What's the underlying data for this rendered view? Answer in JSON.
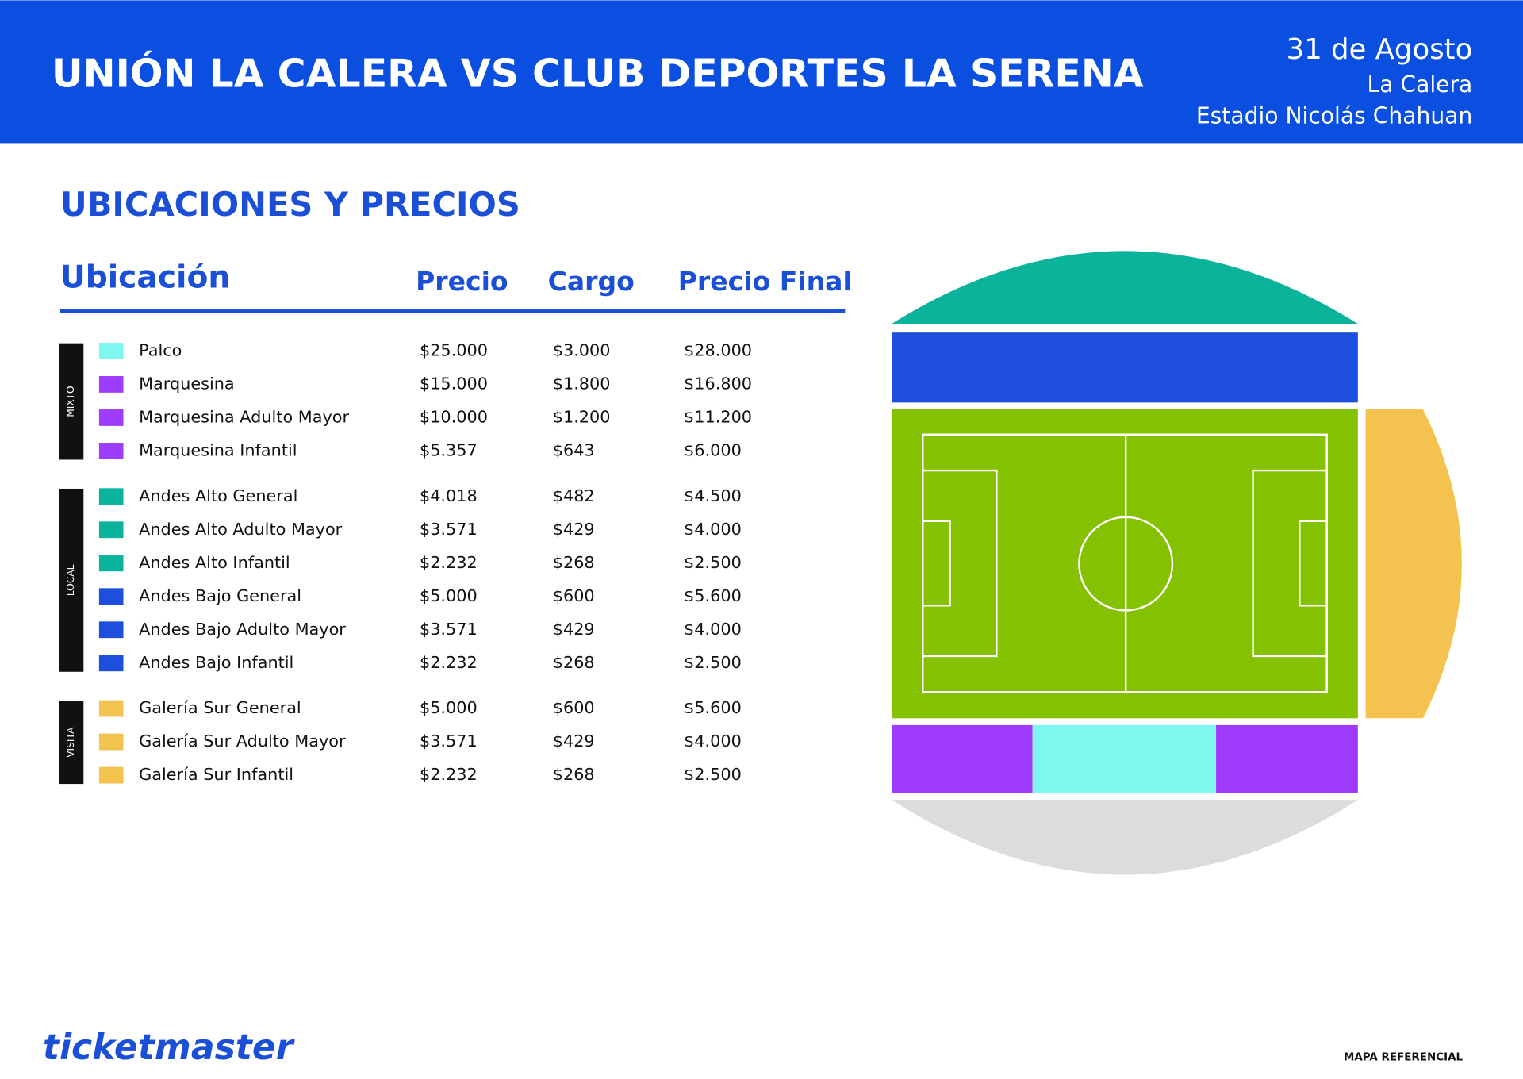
{
  "header": {
    "title": "UNIÓN LA CALERA VS CLUB DEPORTES LA SERENA",
    "date": "31 de Agosto",
    "city": "La Calera",
    "venue": "Estadio Nicolás Chahuan"
  },
  "section_title": "UBICACIONES Y PRECIOS",
  "table": {
    "headers": [
      "Ubicación",
      "Precio",
      "Cargo",
      "Precio Final"
    ],
    "groups": [
      {
        "label": "MIXTO",
        "rows": [
          {
            "name": "Palco",
            "color": "#7ef8ee",
            "price": "$25.000",
            "fee": "$3.000",
            "total": "$28.000"
          },
          {
            "name": "Marquesina",
            "color": "#9f3cfb",
            "price": "$15.000",
            "fee": "$1.800",
            "total": "$16.800"
          },
          {
            "name": "Marquesina Adulto Mayor",
            "color": "#9f3cfb",
            "price": "$10.000",
            "fee": "$1.200",
            "total": "$11.200"
          },
          {
            "name": "Marquesina Infantil",
            "color": "#9f3cfb",
            "price": "$5.357",
            "fee": "$643",
            "total": "$6.000"
          }
        ]
      },
      {
        "label": "LOCAL",
        "rows": [
          {
            "name": "Andes Alto General",
            "color": "#0bb39a",
            "price": "$4.018",
            "fee": "$482",
            "total": "$4.500"
          },
          {
            "name": "Andes Alto Adulto Mayor",
            "color": "#0bb39a",
            "price": "$3.571",
            "fee": "$429",
            "total": "$4.000"
          },
          {
            "name": "Andes Alto Infantil",
            "color": "#0bb39a",
            "price": "$2.232",
            "fee": "$268",
            "total": "$2.500"
          },
          {
            "name": "Andes Bajo General",
            "color": "#1e4fdc",
            "price": "$5.000",
            "fee": "$600",
            "total": "$5.600"
          },
          {
            "name": "Andes Bajo Adulto Mayor",
            "color": "#1e4fdc",
            "price": "$3.571",
            "fee": "$429",
            "total": "$4.000"
          },
          {
            "name": "Andes Bajo Infantil",
            "color": "#1e4fdc",
            "price": "$2.232",
            "fee": "$268",
            "total": "$2.500"
          }
        ]
      },
      {
        "label": "VISITA",
        "rows": [
          {
            "name": "Galería Sur General",
            "color": "#f3c24f",
            "price": "$5.000",
            "fee": "$600",
            "total": "$5.600"
          },
          {
            "name": "Galería Sur Adulto Mayor",
            "color": "#f3c24f",
            "price": "$3.571",
            "fee": "$429",
            "total": "$4.000"
          },
          {
            "name": "Galería Sur Infantil",
            "color": "#f3c24f",
            "price": "$2.232",
            "fee": "$268",
            "total": "$2.500"
          }
        ]
      }
    ]
  },
  "footer": {
    "brand": "ticketmaster",
    "note": "MAPA REFERENCIAL"
  }
}
